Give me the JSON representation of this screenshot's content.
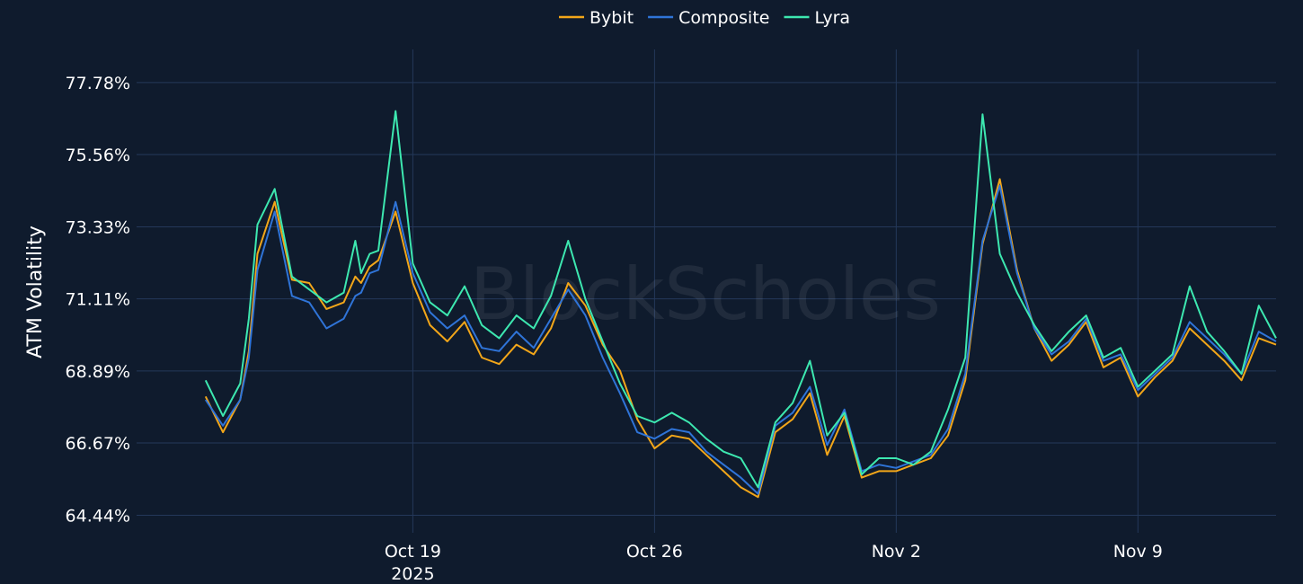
{
  "chart_data": {
    "type": "line",
    "ylabel": "ATM Volatility",
    "watermark": "BlockScholes",
    "y_ticks": [
      "64.44%",
      "66.67%",
      "68.89%",
      "71.11%",
      "73.33%",
      "75.56%",
      "77.78%"
    ],
    "y_tick_values": [
      64.44,
      66.67,
      68.89,
      71.11,
      73.33,
      75.56,
      77.78
    ],
    "ylim": [
      63.9,
      78.8
    ],
    "x_range": [
      "2025-10-11",
      "2025-11-13"
    ],
    "x_ticks": [
      {
        "date": "2025-10-19",
        "label": "Oct 19",
        "sublabel": "2025"
      },
      {
        "date": "2025-10-26",
        "label": "Oct 26",
        "sublabel": ""
      },
      {
        "date": "2025-11-02",
        "label": "Nov 2",
        "sublabel": ""
      },
      {
        "date": "2025-11-09",
        "label": "Nov 9",
        "sublabel": ""
      }
    ],
    "grid": true,
    "legend_position": "top-center",
    "series": [
      {
        "name": "Bybit",
        "color": "#f2a619",
        "x": [
          "2025-10-13",
          "2025-10-13 12:00",
          "2025-10-14",
          "2025-10-14 06:00",
          "2025-10-14 12:00",
          "2025-10-15",
          "2025-10-15 12:00",
          "2025-10-16",
          "2025-10-16 12:00",
          "2025-10-17",
          "2025-10-17 08:00",
          "2025-10-17 12:00",
          "2025-10-17 18:00",
          "2025-10-18",
          "2025-10-18 12:00",
          "2025-10-19",
          "2025-10-19 12:00",
          "2025-10-20",
          "2025-10-20 12:00",
          "2025-10-21",
          "2025-10-21 12:00",
          "2025-10-22",
          "2025-10-22 12:00",
          "2025-10-23",
          "2025-10-23 12:00",
          "2025-10-24",
          "2025-10-24 12:00",
          "2025-10-25",
          "2025-10-25 12:00",
          "2025-10-26",
          "2025-10-26 12:00",
          "2025-10-27",
          "2025-10-27 12:00",
          "2025-10-28",
          "2025-10-28 12:00",
          "2025-10-29",
          "2025-10-29 12:00",
          "2025-10-30",
          "2025-10-30 12:00",
          "2025-10-31",
          "2025-10-31 12:00",
          "2025-11-01",
          "2025-11-01 12:00",
          "2025-11-02",
          "2025-11-02 12:00",
          "2025-11-03",
          "2025-11-03 12:00",
          "2025-11-04",
          "2025-11-04 12:00",
          "2025-11-05",
          "2025-11-05 12:00",
          "2025-11-06",
          "2025-11-06 12:00",
          "2025-11-07",
          "2025-11-07 12:00",
          "2025-11-08",
          "2025-11-08 12:00",
          "2025-11-09",
          "2025-11-09 12:00",
          "2025-11-10",
          "2025-11-10 12:00",
          "2025-11-11",
          "2025-11-11 12:00",
          "2025-11-12",
          "2025-11-12 12:00",
          "2025-11-13"
        ],
        "values": [
          68.1,
          67.0,
          68.0,
          69.5,
          72.5,
          74.1,
          71.7,
          71.6,
          70.8,
          71.0,
          71.8,
          71.6,
          72.1,
          72.3,
          73.8,
          71.6,
          70.3,
          69.8,
          70.4,
          69.3,
          69.1,
          69.7,
          69.4,
          70.2,
          71.6,
          70.9,
          69.7,
          68.9,
          67.4,
          66.5,
          66.9,
          66.8,
          66.3,
          65.8,
          65.3,
          65.0,
          67.0,
          67.4,
          68.2,
          66.3,
          67.5,
          65.6,
          65.8,
          65.8,
          66.0,
          66.2,
          66.9,
          68.6,
          72.8,
          74.8,
          72.0,
          70.2,
          69.2,
          69.7,
          70.4,
          69.0,
          69.3,
          68.1,
          68.7,
          69.2,
          70.2,
          69.7,
          69.2,
          68.6,
          69.9,
          69.7
        ]
      },
      {
        "name": "Composite",
        "color": "#2f74d8",
        "x": [
          "2025-10-13",
          "2025-10-13 12:00",
          "2025-10-14",
          "2025-10-14 06:00",
          "2025-10-14 12:00",
          "2025-10-15",
          "2025-10-15 12:00",
          "2025-10-16",
          "2025-10-16 12:00",
          "2025-10-17",
          "2025-10-17 08:00",
          "2025-10-17 12:00",
          "2025-10-17 18:00",
          "2025-10-18",
          "2025-10-18 12:00",
          "2025-10-19",
          "2025-10-19 12:00",
          "2025-10-20",
          "2025-10-20 12:00",
          "2025-10-21",
          "2025-10-21 12:00",
          "2025-10-22",
          "2025-10-22 12:00",
          "2025-10-23",
          "2025-10-23 12:00",
          "2025-10-24",
          "2025-10-24 12:00",
          "2025-10-25",
          "2025-10-25 12:00",
          "2025-10-26",
          "2025-10-26 12:00",
          "2025-10-27",
          "2025-10-27 12:00",
          "2025-10-28",
          "2025-10-28 12:00",
          "2025-10-29",
          "2025-10-29 12:00",
          "2025-10-30",
          "2025-10-30 12:00",
          "2025-10-31",
          "2025-10-31 12:00",
          "2025-11-01",
          "2025-11-01 12:00",
          "2025-11-02",
          "2025-11-02 12:00",
          "2025-11-03",
          "2025-11-03 12:00",
          "2025-11-04",
          "2025-11-04 12:00",
          "2025-11-05",
          "2025-11-05 12:00",
          "2025-11-06",
          "2025-11-06 12:00",
          "2025-11-07",
          "2025-11-07 12:00",
          "2025-11-08",
          "2025-11-08 12:00",
          "2025-11-09",
          "2025-11-09 12:00",
          "2025-11-10",
          "2025-11-10 12:00",
          "2025-11-11",
          "2025-11-11 12:00",
          "2025-11-12",
          "2025-11-12 12:00",
          "2025-11-13"
        ],
        "values": [
          68.0,
          67.2,
          68.0,
          69.3,
          72.0,
          73.8,
          71.2,
          71.0,
          70.2,
          70.5,
          71.2,
          71.3,
          71.9,
          72.0,
          74.1,
          71.9,
          70.7,
          70.2,
          70.6,
          69.6,
          69.5,
          70.1,
          69.6,
          70.5,
          71.4,
          70.6,
          69.3,
          68.2,
          67.0,
          66.8,
          67.1,
          67.0,
          66.4,
          66.0,
          65.6,
          65.1,
          67.2,
          67.6,
          68.4,
          66.6,
          67.7,
          65.8,
          66.0,
          65.9,
          66.1,
          66.3,
          67.1,
          68.8,
          72.9,
          74.6,
          71.9,
          70.2,
          69.4,
          69.8,
          70.5,
          69.2,
          69.4,
          68.3,
          68.8,
          69.3,
          70.4,
          69.9,
          69.4,
          68.8,
          70.1,
          69.8
        ]
      },
      {
        "name": "Lyra",
        "color": "#3de8b0",
        "x": [
          "2025-10-13",
          "2025-10-13 12:00",
          "2025-10-14",
          "2025-10-14 06:00",
          "2025-10-14 12:00",
          "2025-10-15",
          "2025-10-15 12:00",
          "2025-10-16",
          "2025-10-16 12:00",
          "2025-10-17",
          "2025-10-17 08:00",
          "2025-10-17 12:00",
          "2025-10-17 18:00",
          "2025-10-18",
          "2025-10-18 12:00",
          "2025-10-19",
          "2025-10-19 12:00",
          "2025-10-20",
          "2025-10-20 12:00",
          "2025-10-21",
          "2025-10-21 12:00",
          "2025-10-22",
          "2025-10-22 12:00",
          "2025-10-23",
          "2025-10-23 12:00",
          "2025-10-24",
          "2025-10-24 12:00",
          "2025-10-25",
          "2025-10-25 12:00",
          "2025-10-26",
          "2025-10-26 12:00",
          "2025-10-27",
          "2025-10-27 12:00",
          "2025-10-28",
          "2025-10-28 12:00",
          "2025-10-29",
          "2025-10-29 12:00",
          "2025-10-30",
          "2025-10-30 12:00",
          "2025-10-31",
          "2025-10-31 12:00",
          "2025-11-01",
          "2025-11-01 12:00",
          "2025-11-02",
          "2025-11-02 12:00",
          "2025-11-03",
          "2025-11-03 12:00",
          "2025-11-04",
          "2025-11-04 12:00",
          "2025-11-05",
          "2025-11-05 12:00",
          "2025-11-06",
          "2025-11-06 12:00",
          "2025-11-07",
          "2025-11-07 12:00",
          "2025-11-08",
          "2025-11-08 12:00",
          "2025-11-09",
          "2025-11-09 12:00",
          "2025-11-10",
          "2025-11-10 12:00",
          "2025-11-11",
          "2025-11-11 12:00",
          "2025-11-12",
          "2025-11-12 12:00",
          "2025-11-13"
        ],
        "values": [
          68.6,
          67.5,
          68.5,
          70.5,
          73.4,
          74.5,
          71.8,
          71.4,
          71.0,
          71.3,
          72.9,
          71.9,
          72.5,
          72.6,
          76.9,
          72.2,
          71.0,
          70.6,
          71.5,
          70.3,
          69.9,
          70.6,
          70.2,
          71.2,
          72.9,
          71.1,
          69.8,
          68.5,
          67.5,
          67.3,
          67.6,
          67.3,
          66.8,
          66.4,
          66.2,
          65.3,
          67.3,
          67.9,
          69.2,
          66.9,
          67.6,
          65.7,
          66.2,
          66.2,
          66.0,
          66.4,
          67.7,
          69.3,
          76.8,
          72.5,
          71.3,
          70.3,
          69.5,
          70.1,
          70.6,
          69.3,
          69.6,
          68.4,
          68.9,
          69.4,
          71.5,
          70.1,
          69.5,
          68.8,
          70.9,
          69.9
        ]
      }
    ]
  }
}
